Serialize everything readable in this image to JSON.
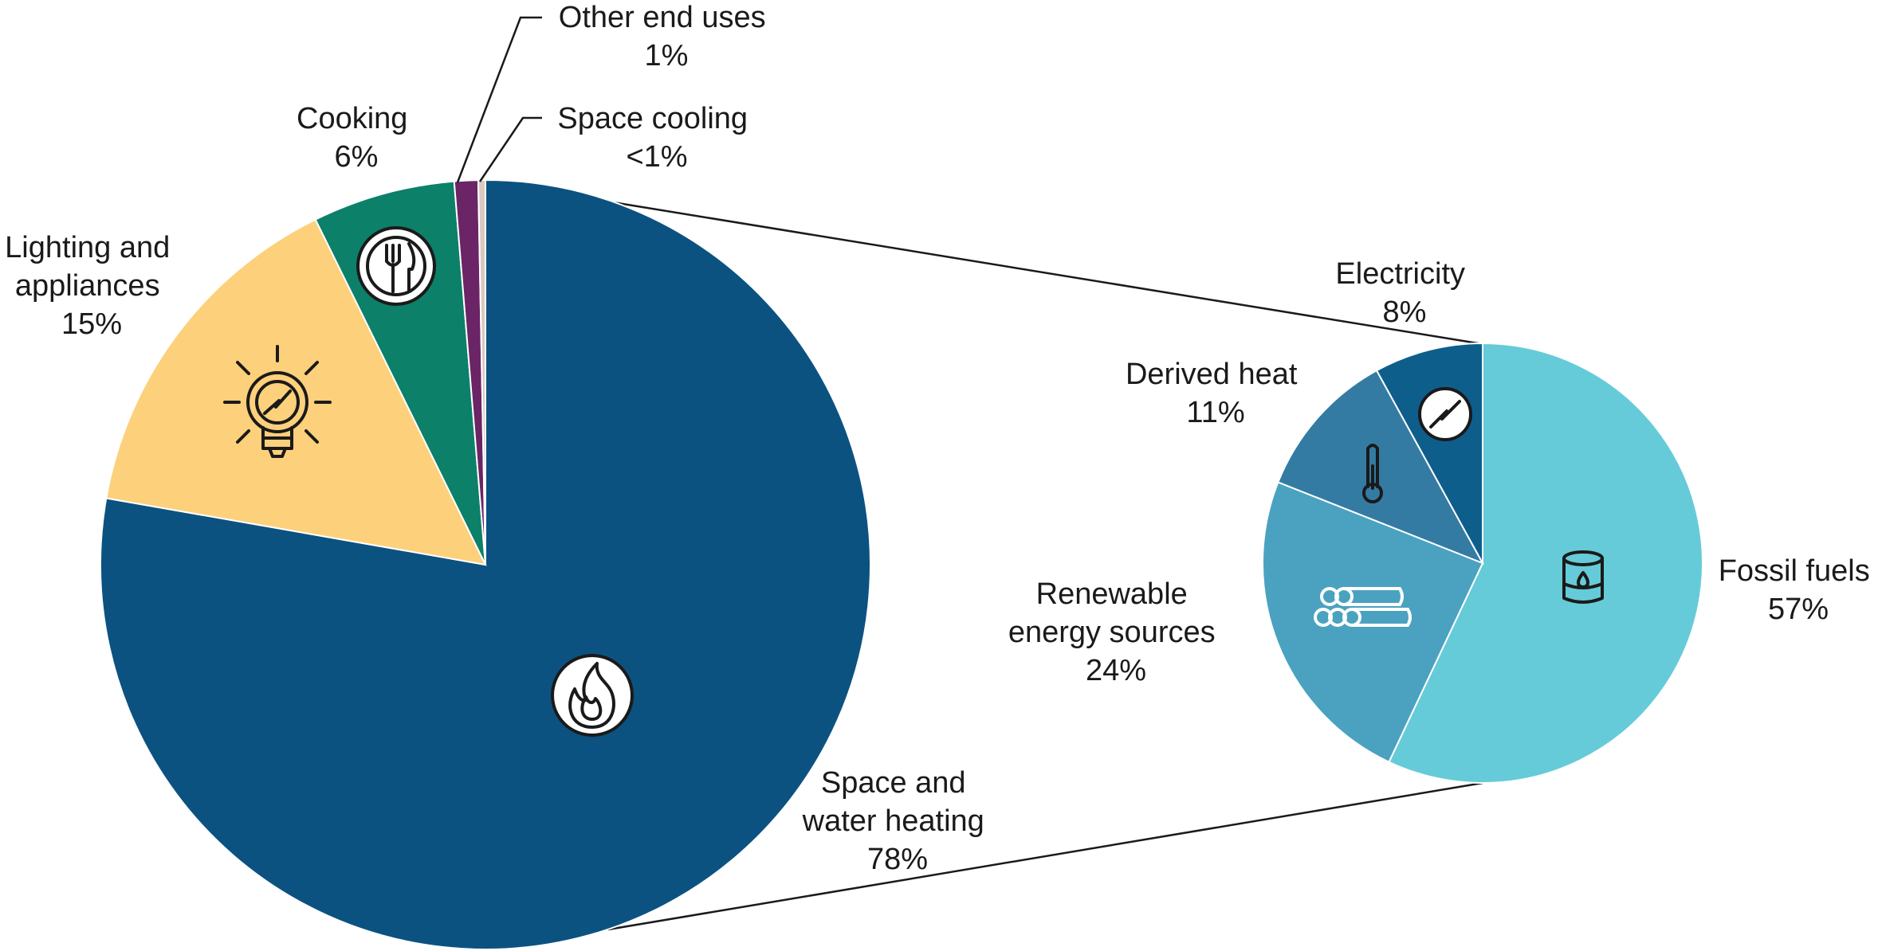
{
  "colors": {
    "space_water_heating": "#0b5281",
    "lighting_appliances": "#fdd07b",
    "cooking": "#0c8069",
    "other_end_uses": "#6b2466",
    "space_cooling": "#d9c9c0",
    "fossil_fuels": "#66cbd8",
    "renewables": "#4aa2c0",
    "derived_heat": "#347ba3",
    "electricity": "#0e5e8c"
  },
  "chart_data": [
    {
      "type": "pie",
      "slices": [
        {
          "key": "space_water_heating",
          "value": 78,
          "label_lines": [
            "Space and",
            "water heating",
            "78%"
          ],
          "icon": "flame-icon"
        },
        {
          "key": "lighting_appliances",
          "value": 15,
          "label_lines": [
            "Lighting and",
            "appliances",
            "15%"
          ],
          "icon": "light-bulb-icon"
        },
        {
          "key": "cooking",
          "value": 6,
          "label_lines": [
            "Cooking",
            "6%"
          ],
          "icon": "cutlery-icon"
        },
        {
          "key": "other_end_uses",
          "value": 1,
          "label_lines": [
            "Other end uses",
            "1%"
          ]
        },
        {
          "key": "space_cooling",
          "value": 0.3,
          "label_lines": [
            "Space cooling",
            "<1%"
          ]
        }
      ]
    },
    {
      "type": "pie",
      "slices": [
        {
          "key": "fossil_fuels",
          "value": 57,
          "label_lines": [
            "Fossil fuels",
            "57%"
          ],
          "icon": "oil-barrel-icon"
        },
        {
          "key": "renewables",
          "value": 24,
          "label_lines": [
            "Renewable",
            "energy sources",
            "24%"
          ],
          "icon": "wood-logs-icon"
        },
        {
          "key": "derived_heat",
          "value": 11,
          "label_lines": [
            "Derived heat",
            "11%"
          ],
          "icon": "thermometer-icon"
        },
        {
          "key": "electricity",
          "value": 8,
          "label_lines": [
            "Electricity",
            "8%"
          ],
          "icon": "electricity-icon"
        }
      ]
    }
  ]
}
